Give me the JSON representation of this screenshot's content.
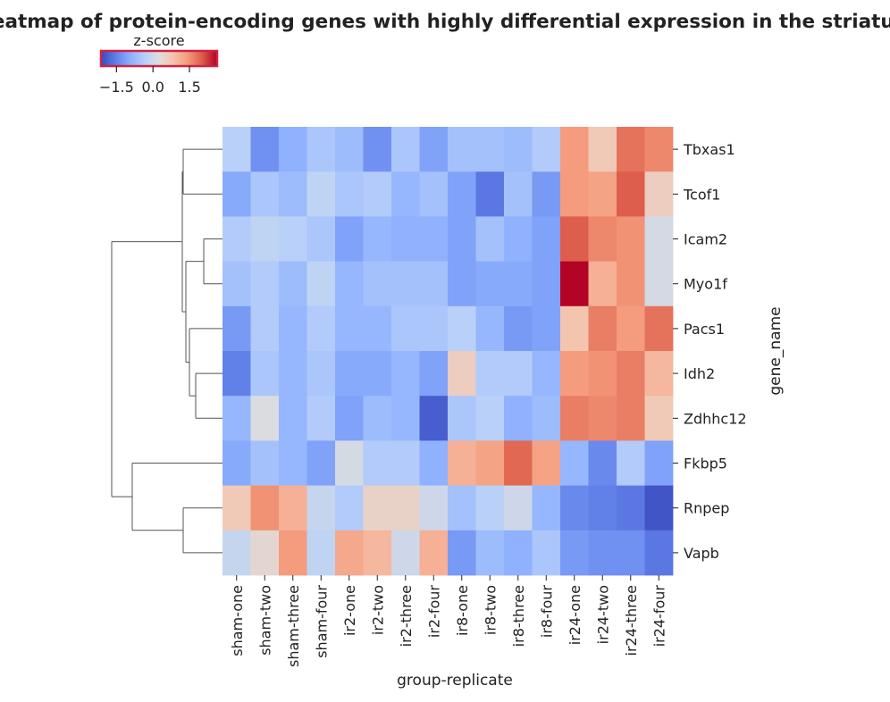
{
  "chart_data": {
    "type": "heatmap",
    "title": "Heatmap of protein-encoding genes with highly differential expression in the striatum",
    "xlabel": "group-replicate",
    "ylabel": "gene_name",
    "columns": [
      "sham-one",
      "sham-two",
      "sham-three",
      "sham-four",
      "ir2-one",
      "ir2-two",
      "ir2-three",
      "ir2-four",
      "ir8-one",
      "ir8-two",
      "ir8-three",
      "ir8-four",
      "ir24-one",
      "ir24-two",
      "ir24-three",
      "ir24-four"
    ],
    "rows": [
      "Tbxas1",
      "Tcof1",
      "Icam2",
      "Myo1f",
      "Pacs1",
      "Idh2",
      "Zdhhc12",
      "Fkbp5",
      "Rnpep",
      "Vapb"
    ],
    "values": [
      [
        -0.3,
        -1.3,
        -0.9,
        -0.5,
        -0.7,
        -1.3,
        -0.5,
        -1.1,
        -0.6,
        -0.6,
        -0.7,
        -0.4,
        1.4,
        0.7,
        1.8,
        1.6
      ],
      [
        -1.0,
        -0.5,
        -0.7,
        -0.2,
        -0.5,
        -0.4,
        -0.8,
        -0.6,
        -1.1,
        -1.6,
        -0.6,
        -1.2,
        1.4,
        1.3,
        2.0,
        0.6
      ],
      [
        -0.4,
        -0.2,
        -0.3,
        -0.5,
        -1.1,
        -0.8,
        -0.9,
        -0.9,
        -1.1,
        -0.6,
        -0.9,
        -1.1,
        2.0,
        1.6,
        1.5,
        0.1
      ],
      [
        -0.6,
        -0.4,
        -0.7,
        -0.2,
        -0.8,
        -0.6,
        -0.6,
        -0.6,
        -1.1,
        -1.0,
        -1.0,
        -1.1,
        2.6,
        1.1,
        1.5,
        0.1
      ],
      [
        -1.2,
        -0.4,
        -0.8,
        -0.4,
        -0.8,
        -0.8,
        -0.5,
        -0.5,
        -0.3,
        -0.8,
        -1.2,
        -1.1,
        0.8,
        1.7,
        1.4,
        1.8
      ],
      [
        -1.5,
        -0.5,
        -0.8,
        -0.5,
        -1.0,
        -1.0,
        -0.8,
        -1.1,
        0.6,
        -0.4,
        -0.4,
        -0.8,
        1.4,
        1.5,
        1.7,
        1.0
      ],
      [
        -0.8,
        0.2,
        -0.8,
        -0.4,
        -1.1,
        -0.7,
        -0.8,
        -1.9,
        -0.5,
        -0.3,
        -0.9,
        -0.7,
        1.7,
        1.6,
        1.7,
        0.7
      ],
      [
        -1.0,
        -0.6,
        -0.8,
        -1.1,
        0.1,
        -0.4,
        -0.4,
        -0.9,
        1.1,
        1.3,
        1.9,
        1.3,
        -0.8,
        -1.4,
        -0.4,
        -1.1
      ],
      [
        0.7,
        1.5,
        1.1,
        -0.1,
        -0.4,
        0.5,
        0.5,
        0.0,
        -0.6,
        -0.3,
        0.0,
        -0.8,
        -1.4,
        -1.5,
        -1.6,
        -2.0
      ],
      [
        -0.1,
        0.4,
        1.4,
        -0.2,
        1.2,
        1.0,
        0.0,
        1.1,
        -1.2,
        -0.7,
        -0.9,
        -0.5,
        -1.2,
        -1.3,
        -1.3,
        -1.6
      ]
    ],
    "colormap": "coolwarm",
    "colors": {
      "low": "#3b4cc0",
      "mid": "#dddddd",
      "high": "#b40426"
    },
    "colorbar": {
      "label": "z-score",
      "ticks": [
        "−1.5",
        "0.0",
        "1.5"
      ],
      "tick_values": [
        -1.5,
        0.0,
        1.5
      ],
      "range": [
        -2.1,
        2.6
      ],
      "position": "top-left"
    },
    "row_dendrogram": true
  }
}
